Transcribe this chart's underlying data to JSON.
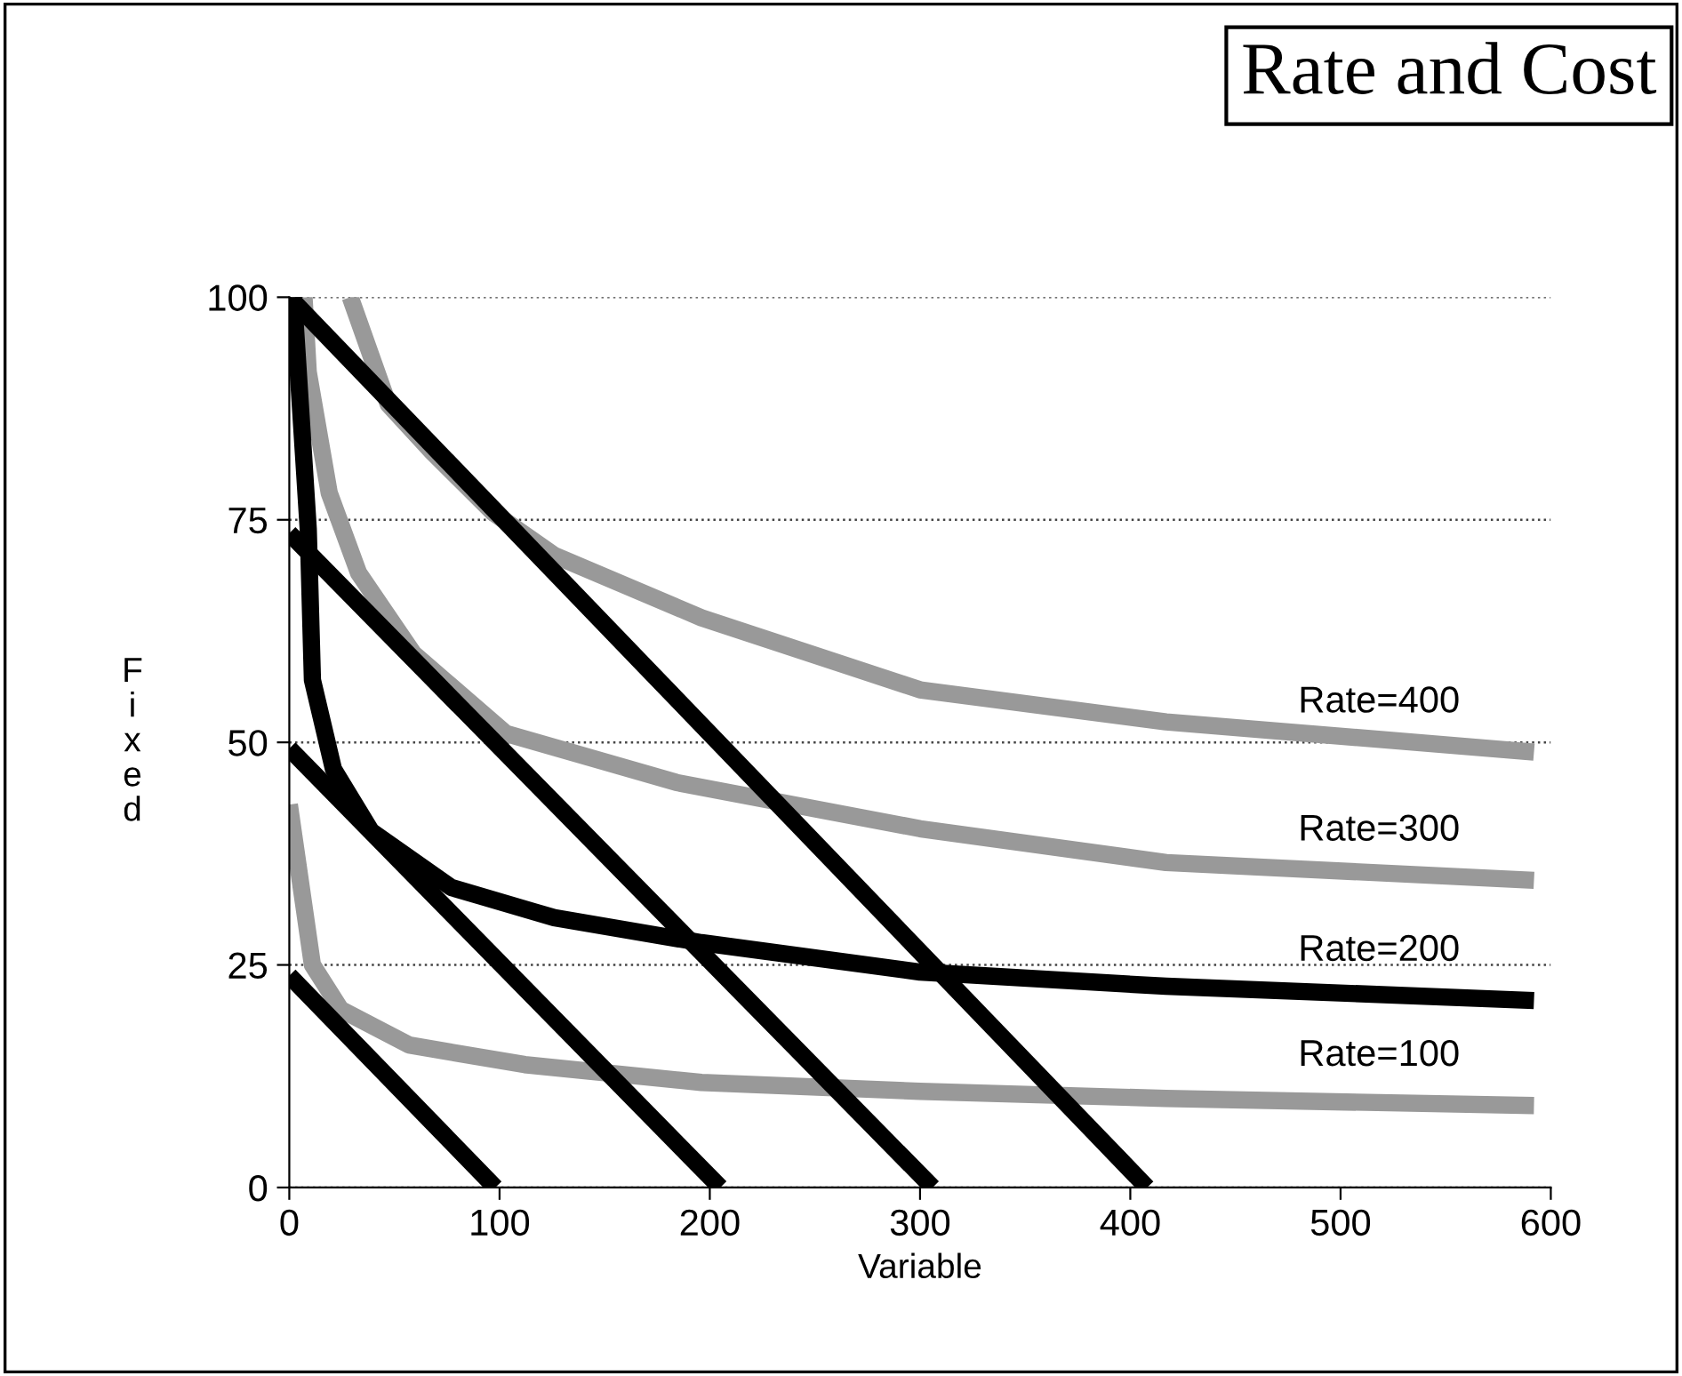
{
  "chart_data": {
    "type": "line",
    "title": "Rate and Cost",
    "xlabel": "Variable",
    "ylabel": "Fixed",
    "xlim": [
      0,
      600
    ],
    "ylim": [
      0,
      100
    ],
    "xticks": [
      0,
      100,
      200,
      300,
      400,
      500,
      600
    ],
    "yticks": [
      0,
      25,
      50,
      75,
      100
    ],
    "grid": "y",
    "marker": "none",
    "line_style": "solid",
    "series": [
      {
        "name": "Rate=400",
        "color": "#999999",
        "x": [
          29,
          47,
          68,
          97,
          126,
          196,
          300,
          417,
          592
        ],
        "values": [
          100,
          88,
          82.6,
          75.8,
          71,
          64,
          55.9,
          52.3,
          48.9
        ]
      },
      {
        "name": "Rate=300",
        "color": "#999999",
        "x": [
          7,
          9,
          19,
          33,
          59,
          103,
          184,
          300,
          417,
          592
        ],
        "values": [
          100,
          91.6,
          78,
          69,
          60,
          51,
          45.5,
          40.3,
          36.5,
          34.5
        ]
      },
      {
        "name": "Rate=200",
        "color": "#000000",
        "x": [
          2,
          9,
          11,
          21,
          39,
          77,
          126,
          196,
          300,
          417,
          592
        ],
        "values": [
          100,
          74,
          57,
          47,
          40,
          33.7,
          30.3,
          27.5,
          24.2,
          22.6,
          21
        ]
      },
      {
        "name": "Rate=100",
        "color": "#999999",
        "x": [
          0,
          11,
          24.5,
          57,
          112,
          196,
          300,
          417,
          592
        ],
        "values": [
          43,
          25,
          20,
          16,
          13.8,
          11.8,
          10.8,
          10,
          9.2
        ]
      },
      {
        "color": "#000000",
        "x": [
          0,
          408
        ],
        "values": [
          100,
          0
        ]
      },
      {
        "color": "#000000",
        "x": [
          0,
          306
        ],
        "values": [
          73.5,
          0
        ]
      },
      {
        "color": "#000000",
        "x": [
          0,
          205
        ],
        "values": [
          49.3,
          0
        ]
      },
      {
        "color": "#000000",
        "x": [
          0,
          98
        ],
        "values": [
          23.8,
          0
        ]
      }
    ]
  }
}
